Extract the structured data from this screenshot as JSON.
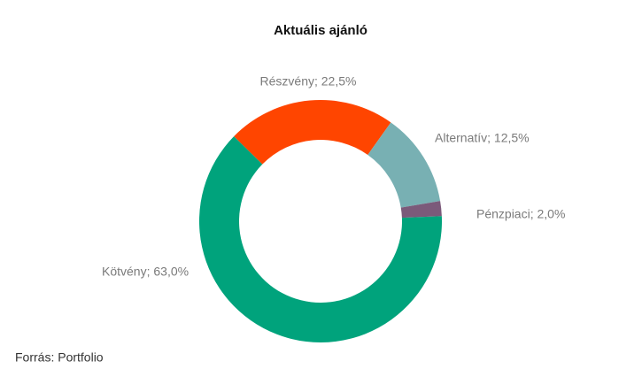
{
  "chart_data": {
    "type": "donut",
    "title": "Aktuális ajánló",
    "values": [
      22.5,
      12.5,
      2.0,
      63.0
    ],
    "value_labels": [
      "Részvény; 22,5%",
      "Alternatív; 12,5%",
      "Pénzpiaci; 2,0%",
      "Kötvény; 63,0%"
    ],
    "colors": [
      "#ff4500",
      "#78b0b3",
      "#7b5a7a",
      "#00a37c"
    ],
    "source": "Forrás: Portfolio"
  }
}
